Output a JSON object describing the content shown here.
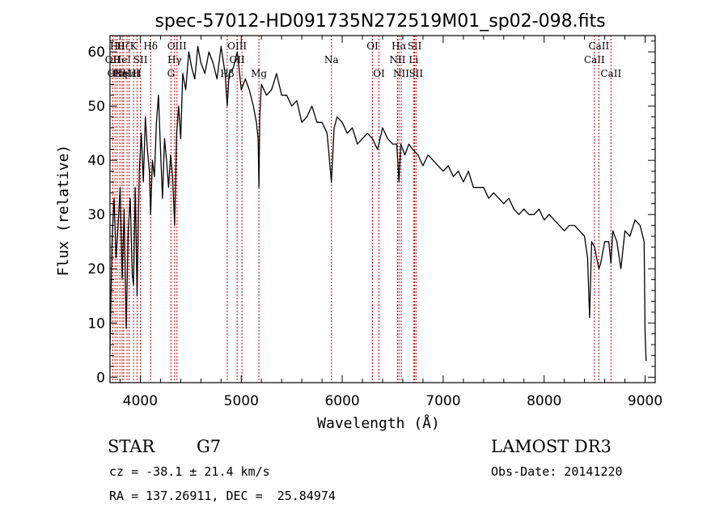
{
  "chart_data": {
    "type": "line",
    "title": "spec-57012-HD091735N272519M01_sp02-098.fits",
    "xlabel": "Wavelength (Å)",
    "ylabel": "Flux (relative)",
    "xlim": [
      3700,
      9100
    ],
    "ylim": [
      -1,
      63
    ],
    "xticks": [
      4000,
      5000,
      6000,
      7000,
      8000,
      9000
    ],
    "yticks": [
      0,
      10,
      20,
      30,
      40,
      50,
      60
    ],
    "series": [
      {
        "name": "flux",
        "x": [
          3700,
          3720,
          3740,
          3760,
          3780,
          3800,
          3820,
          3840,
          3860,
          3880,
          3900,
          3920,
          3933,
          3950,
          3968,
          3990,
          4010,
          4030,
          4050,
          4070,
          4090,
          4102,
          4120,
          4140,
          4160,
          4180,
          4200,
          4220,
          4240,
          4260,
          4280,
          4300,
          4320,
          4340,
          4360,
          4380,
          4400,
          4420,
          4450,
          4480,
          4510,
          4540,
          4570,
          4600,
          4640,
          4680,
          4720,
          4760,
          4800,
          4840,
          4861,
          4880,
          4920,
          4960,
          5000,
          5040,
          5080,
          5120,
          5150,
          5167,
          5175,
          5183,
          5200,
          5250,
          5300,
          5350,
          5400,
          5450,
          5500,
          5550,
          5600,
          5650,
          5700,
          5750,
          5800,
          5850,
          5893,
          5920,
          5950,
          6000,
          6050,
          6100,
          6150,
          6200,
          6250,
          6300,
          6350,
          6400,
          6450,
          6500,
          6540,
          6563,
          6580,
          6620,
          6660,
          6700,
          6750,
          6800,
          6850,
          6900,
          6950,
          7000,
          7050,
          7100,
          7150,
          7200,
          7250,
          7300,
          7350,
          7400,
          7450,
          7500,
          7550,
          7600,
          7650,
          7700,
          7750,
          7800,
          7850,
          7900,
          7950,
          8000,
          8050,
          8100,
          8150,
          8200,
          8250,
          8300,
          8350,
          8400,
          8430,
          8450,
          8470,
          8500,
          8520,
          8542,
          8560,
          8600,
          8640,
          8662,
          8680,
          8720,
          8760,
          8800,
          8850,
          8900,
          8950,
          8990,
          9000,
          9010
        ],
        "values": [
          5,
          25,
          33,
          22,
          28,
          35,
          18,
          31,
          9,
          27,
          33,
          19,
          17,
          35,
          15,
          38,
          45,
          36,
          48,
          42,
          38,
          30,
          40,
          37,
          47,
          52,
          42,
          33,
          44,
          40,
          35,
          41,
          37,
          28,
          45,
          50,
          44,
          56,
          53,
          60,
          57,
          55,
          61,
          58,
          56,
          60,
          58,
          55,
          61,
          56,
          50,
          56,
          57,
          60,
          53,
          55,
          53,
          50,
          47,
          44,
          35,
          48,
          54,
          52,
          53,
          56,
          52,
          52,
          50,
          51,
          47,
          48,
          50,
          47,
          47,
          45,
          36,
          46,
          48,
          47,
          45,
          46,
          43,
          44,
          45,
          44,
          42,
          46,
          44,
          43,
          43,
          36,
          43,
          41,
          43,
          42,
          41,
          39,
          41,
          40,
          39,
          38,
          39,
          37,
          38,
          36,
          38,
          35,
          35,
          35,
          33,
          34,
          33,
          32,
          33,
          31,
          30,
          31,
          30,
          30,
          31,
          29,
          30,
          29,
          28,
          27,
          28,
          28,
          27,
          26,
          22,
          11,
          25,
          24,
          22,
          20,
          21,
          25,
          25,
          21,
          27,
          25,
          20,
          27,
          26,
          29,
          28,
          25,
          8,
          3
        ]
      }
    ],
    "line_markers": [
      {
        "wl": 3727,
        "labels": [
          {
            "text": "OII",
            "row": 2
          }
        ]
      },
      {
        "wl": 3750,
        "labels": [
          {
            "text": "OII",
            "row": 3
          }
        ]
      },
      {
        "wl": 3770,
        "labels": [
          {
            "text": "Hθ",
            "row": 1
          }
        ]
      },
      {
        "wl": 3798,
        "labels": [
          {
            "text": "Hη",
            "row": 3
          }
        ]
      },
      {
        "wl": 3820,
        "labels": [
          {
            "text": "HeI",
            "row": 2
          }
        ]
      },
      {
        "wl": 3835,
        "labels": [
          {
            "text": "Hζ",
            "row": 1
          }
        ]
      },
      {
        "wl": 3869,
        "labels": [
          {
            "text": "NeIII",
            "row": 3
          }
        ]
      },
      {
        "wl": 3889,
        "labels": [
          {
            "text": "Hε",
            "row": 3
          }
        ]
      },
      {
        "wl": 3933,
        "labels": [
          {
            "text": "K",
            "row": 1
          }
        ]
      },
      {
        "wl": 3968,
        "labels": [
          {
            "text": "H",
            "row": 3
          }
        ]
      },
      {
        "wl": 4002,
        "labels": [
          {
            "text": "SII",
            "row": 2
          }
        ]
      },
      {
        "wl": 4102,
        "labels": [
          {
            "text": "Hδ",
            "row": 1
          }
        ]
      },
      {
        "wl": 4304,
        "labels": [
          {
            "text": "G",
            "row": 3
          }
        ]
      },
      {
        "wl": 4340,
        "labels": [
          {
            "text": "Hγ",
            "row": 2
          }
        ]
      },
      {
        "wl": 4363,
        "labels": [
          {
            "text": "OIII",
            "row": 1
          }
        ]
      },
      {
        "wl": 4861,
        "labels": [
          {
            "text": "Hβ",
            "row": 3
          }
        ]
      },
      {
        "wl": 4959,
        "labels": [
          {
            "text": "OIII",
            "row": 1
          },
          {
            "text": "OII",
            "row": 2
          }
        ]
      },
      {
        "wl": 5007,
        "labels": []
      },
      {
        "wl": 5175,
        "labels": [
          {
            "text": "Mg",
            "row": 3
          }
        ]
      },
      {
        "wl": 5893,
        "labels": [
          {
            "text": "Na",
            "row": 2
          }
        ]
      },
      {
        "wl": 6300,
        "labels": [
          {
            "text": "OI",
            "row": 1
          }
        ]
      },
      {
        "wl": 6364,
        "labels": [
          {
            "text": "OI",
            "row": 3
          }
        ]
      },
      {
        "wl": 6548,
        "labels": [
          {
            "text": "NII",
            "row": 2
          }
        ]
      },
      {
        "wl": 6563,
        "labels": [
          {
            "text": "Hα",
            "row": 1
          }
        ]
      },
      {
        "wl": 6584,
        "labels": [
          {
            "text": "NII",
            "row": 3
          }
        ]
      },
      {
        "wl": 6707,
        "labels": [
          {
            "text": "Li",
            "row": 2
          }
        ]
      },
      {
        "wl": 6717,
        "labels": [
          {
            "text": "SII",
            "row": 1
          }
        ]
      },
      {
        "wl": 6731,
        "labels": [
          {
            "text": "SII",
            "row": 3
          }
        ]
      },
      {
        "wl": 8498,
        "labels": [
          {
            "text": "CaII",
            "row": 2
          }
        ]
      },
      {
        "wl": 8542,
        "labels": [
          {
            "text": "CaII",
            "row": 1
          }
        ]
      },
      {
        "wl": 8662,
        "labels": [
          {
            "text": "CaII",
            "row": 3
          }
        ]
      }
    ],
    "colors": {
      "line": "#000000",
      "marker": "#cc0000",
      "axes": "#000000"
    }
  },
  "info": {
    "class": "STAR",
    "subclass": "G7",
    "survey": "LAMOST DR3",
    "cz": "cz = -38.1 ± 21.4 km/s",
    "obs_date": "Obs-Date: 20141220",
    "coords": "RA = 137.26911, DEC =  25.84974"
  }
}
